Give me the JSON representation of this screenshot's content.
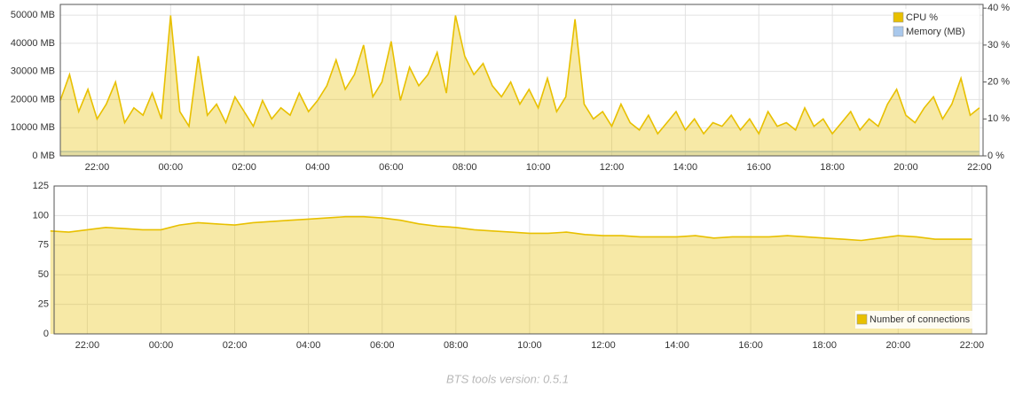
{
  "charts": [
    {
      "chart_data": {
        "type": "line",
        "legend": "top-right",
        "grid": true,
        "x": [
          21,
          21.25,
          21.5,
          21.75,
          22,
          22.25,
          22.5,
          22.75,
          23,
          23.25,
          23.5,
          23.75,
          24,
          24.25,
          24.5,
          24.75,
          25,
          25.25,
          25.5,
          25.75,
          26,
          26.25,
          26.5,
          26.75,
          27,
          27.25,
          27.5,
          27.75,
          28,
          28.25,
          28.5,
          28.75,
          29,
          29.25,
          29.5,
          29.75,
          30,
          30.25,
          30.5,
          30.75,
          31,
          31.25,
          31.5,
          31.75,
          32,
          32.25,
          32.5,
          32.75,
          33,
          33.25,
          33.5,
          33.75,
          34,
          34.25,
          34.5,
          34.75,
          35,
          35.25,
          35.5,
          35.75,
          36,
          36.25,
          36.5,
          36.75,
          37,
          37.25,
          37.5,
          37.75,
          38,
          38.25,
          38.5,
          38.75,
          39,
          39.25,
          39.5,
          39.75,
          40,
          40.25,
          40.5,
          40.75,
          41,
          41.25,
          41.5,
          41.75,
          42,
          42.25,
          42.5,
          42.75,
          43,
          43.25,
          43.5,
          43.75,
          44,
          44.25,
          44.5,
          44.75,
          45,
          45.25,
          45.5,
          45.75,
          46
        ],
        "series": [
          {
            "name": "CPU %",
            "color": "#e8c000",
            "axis": "y2",
            "values": [
              15,
              22,
              12,
              18,
              10,
              14,
              20,
              9,
              13,
              11,
              17,
              10,
              38,
              12,
              8,
              27,
              11,
              14,
              9,
              16,
              12,
              8,
              15,
              10,
              13,
              11,
              17,
              12,
              15,
              19,
              26,
              18,
              22,
              30,
              16,
              20,
              31,
              15,
              24,
              19,
              22,
              28,
              17,
              38,
              27,
              22,
              25,
              19,
              16,
              20,
              14,
              18,
              13,
              21,
              12,
              16,
              37,
              14,
              10,
              12,
              8,
              14,
              9,
              7,
              11,
              6,
              9,
              12,
              7,
              10,
              6,
              9,
              8,
              11,
              7,
              10,
              6,
              12,
              8,
              9,
              7,
              13,
              8,
              10,
              6,
              9,
              12,
              7,
              10,
              8,
              14,
              18,
              11,
              9,
              13,
              16,
              10,
              14,
              21,
              11,
              13
            ]
          },
          {
            "name": "Memory (MB)",
            "color": "#a9c8ec",
            "values": [
              1500,
              1500,
              1500,
              1500,
              1500,
              1500,
              1500,
              1500,
              1500,
              1500,
              1500,
              1500,
              1500,
              1500,
              1500,
              1500,
              1500,
              1500,
              1500,
              1500,
              1500,
              1500,
              1500,
              1500,
              1500,
              1500,
              1500,
              1500,
              1500,
              1500,
              1500,
              1500,
              1500,
              1500,
              1500,
              1500,
              1500,
              1500,
              1500,
              1500,
              1500,
              1500,
              1500,
              1500,
              1500,
              1500,
              1500,
              1500,
              1500,
              1500,
              1500,
              1500,
              1500,
              1500,
              1500,
              1500,
              1500,
              1500,
              1500,
              1500,
              1500,
              1500,
              1500,
              1500,
              1500,
              1500,
              1500,
              1500,
              1500,
              1500,
              1500,
              1500,
              1500,
              1500,
              1500,
              1500,
              1500,
              1500,
              1500,
              1500,
              1500,
              1500,
              1500,
              1500,
              1500,
              1500,
              1500,
              1500,
              1500,
              1500,
              1500,
              1500,
              1500,
              1500,
              1500,
              1500,
              1500,
              1500,
              1500,
              1500,
              1500
            ]
          }
        ],
        "xlim": [
          21.0,
          46.1
        ],
        "xticks": [
          {
            "value": 22,
            "label": "22:00"
          },
          {
            "value": 24,
            "label": "00:00"
          },
          {
            "value": 26,
            "label": "02:00"
          },
          {
            "value": 28,
            "label": "04:00"
          },
          {
            "value": 30,
            "label": "06:00"
          },
          {
            "value": 32,
            "label": "08:00"
          },
          {
            "value": 34,
            "label": "10:00"
          },
          {
            "value": 36,
            "label": "12:00"
          },
          {
            "value": 38,
            "label": "14:00"
          },
          {
            "value": 40,
            "label": "16:00"
          },
          {
            "value": 42,
            "label": "18:00"
          },
          {
            "value": 44,
            "label": "20:00"
          },
          {
            "value": 46,
            "label": "22:00"
          }
        ],
        "ylim": [
          0,
          53800
        ],
        "yticks": [
          {
            "value": 0,
            "label": "0 MB"
          },
          {
            "value": 10000,
            "label": "10000 MB"
          },
          {
            "value": 20000,
            "label": "20000 MB"
          },
          {
            "value": 30000,
            "label": "30000 MB"
          },
          {
            "value": 40000,
            "label": "40000 MB"
          },
          {
            "value": 50000,
            "label": "50000 MB"
          }
        ],
        "y2lim": [
          0,
          41
        ],
        "y2ticks": [
          {
            "value": 0,
            "label": "0 %"
          },
          {
            "value": 10,
            "label": "10 %"
          },
          {
            "value": 20,
            "label": "20 %"
          },
          {
            "value": 30,
            "label": "30 %"
          },
          {
            "value": 40,
            "label": "40 %"
          }
        ]
      }
    },
    {
      "chart_data": {
        "type": "line",
        "legend": "bottom-right",
        "grid": true,
        "x": [
          21,
          21.5,
          22,
          22.5,
          23,
          23.5,
          24,
          24.5,
          25,
          25.5,
          26,
          26.5,
          27,
          27.5,
          28,
          28.5,
          29,
          29.5,
          30,
          30.5,
          31,
          31.5,
          32,
          32.5,
          33,
          33.5,
          34,
          34.5,
          35,
          35.5,
          36,
          36.5,
          37,
          37.5,
          38,
          38.5,
          39,
          39.5,
          40,
          40.5,
          41,
          41.5,
          42,
          42.5,
          43,
          43.5,
          44,
          44.5,
          45,
          45.5,
          46
        ],
        "series": [
          {
            "name": "Number of connections",
            "color": "#e8c000",
            "values": [
              87,
              86,
              88,
              90,
              89,
              88,
              88,
              92,
              94,
              93,
              92,
              94,
              95,
              96,
              97,
              98,
              99,
              99,
              98,
              96,
              93,
              91,
              90,
              88,
              87,
              86,
              85,
              85,
              86,
              84,
              83,
              83,
              82,
              82,
              82,
              83,
              81,
              82,
              82,
              82,
              83,
              82,
              81,
              80,
              79,
              81,
              83,
              82,
              80,
              80,
              80
            ]
          }
        ],
        "xlim": [
          21.1,
          46.4
        ],
        "xticks": [
          {
            "value": 22,
            "label": "22:00"
          },
          {
            "value": 24,
            "label": "00:00"
          },
          {
            "value": 26,
            "label": "02:00"
          },
          {
            "value": 28,
            "label": "04:00"
          },
          {
            "value": 30,
            "label": "06:00"
          },
          {
            "value": 32,
            "label": "08:00"
          },
          {
            "value": 34,
            "label": "10:00"
          },
          {
            "value": 36,
            "label": "12:00"
          },
          {
            "value": 38,
            "label": "14:00"
          },
          {
            "value": 40,
            "label": "16:00"
          },
          {
            "value": 42,
            "label": "18:00"
          },
          {
            "value": 44,
            "label": "20:00"
          },
          {
            "value": 46,
            "label": "22:00"
          }
        ],
        "ylim": [
          0,
          125
        ],
        "yticks": [
          0,
          25,
          50,
          75,
          100,
          125
        ]
      }
    }
  ],
  "footer": "BTS tools version: 0.5.1"
}
